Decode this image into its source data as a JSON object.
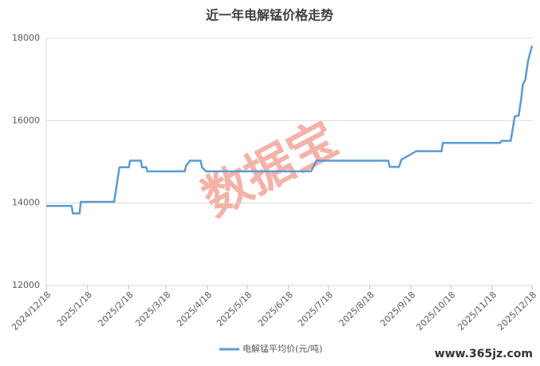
{
  "chart_data": {
    "type": "line",
    "title": "近一年电解锰价格走势",
    "x": [
      "2024/12/18",
      "2025/1/6",
      "2025/1/7",
      "2025/1/12",
      "2025/1/13",
      "2025/2/7",
      "2025/2/11",
      "2025/2/18",
      "2025/2/19",
      "2025/2/27",
      "2025/2/28",
      "2025/3/3",
      "2025/3/4",
      "2025/4/1",
      "2025/4/2",
      "2025/4/5",
      "2025/4/13",
      "2025/4/14",
      "2025/4/17",
      "2025/7/5",
      "2025/7/9",
      "2025/9/1",
      "2025/9/2",
      "2025/9/9",
      "2025/9/11",
      "2025/9/15",
      "2025/9/22",
      "2025/10/11",
      "2025/10/12",
      "2025/11/24",
      "2025/11/25",
      "2025/12/2",
      "2025/12/4",
      "2025/12/5",
      "2025/12/8",
      "2025/12/10",
      "2025/12/11",
      "2025/12/13",
      "2025/12/15",
      "2025/12/18"
    ],
    "series": [
      {
        "name": "电解锰平均价(元/吨)",
        "color": "#5b9bd5",
        "values": [
          13930,
          13930,
          13750,
          13750,
          14030,
          14030,
          14870,
          14870,
          15030,
          15030,
          14870,
          14870,
          14770,
          14770,
          14900,
          15030,
          15030,
          14870,
          14770,
          14770,
          15030,
          15030,
          14880,
          14880,
          15060,
          15130,
          15260,
          15260,
          15460,
          15460,
          15510,
          15510,
          15900,
          16100,
          16130,
          16560,
          16870,
          17000,
          17450,
          17820
        ]
      }
    ],
    "xlim": [
      "2024/12/18",
      "2025/12/18"
    ],
    "xticks": [
      "2024/12/18",
      "2025/1/18",
      "2025/2/18",
      "2025/3/18",
      "2025/4/18",
      "2025/5/18",
      "2025/6/18",
      "2025/7/18",
      "2025/8/18",
      "2025/9/18",
      "2025/10/18",
      "2025/11/18",
      "2025/12/18"
    ],
    "ylim": [
      12000,
      18000
    ],
    "yticks": [
      12000,
      14000,
      16000,
      18000
    ],
    "grid": true,
    "legend": "bottom"
  },
  "watermark": "数据宝",
  "site": "www.365jz.com"
}
